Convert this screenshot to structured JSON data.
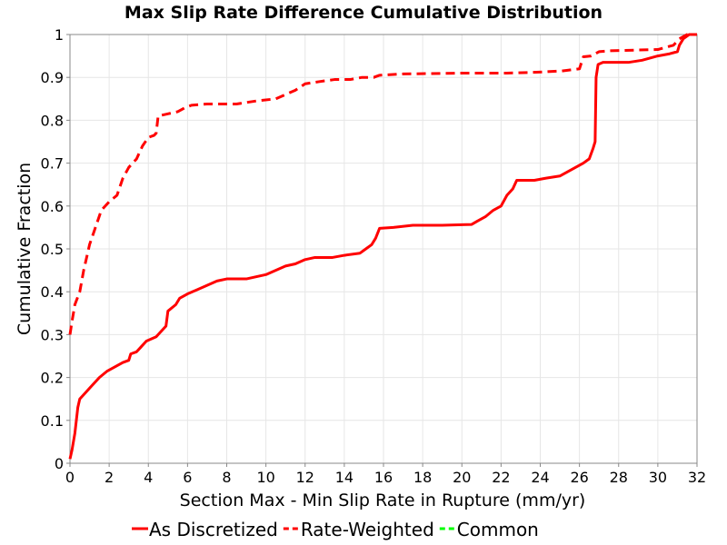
{
  "chart_data": {
    "type": "line",
    "title": "Max Slip Rate Difference Cumulative Distribution",
    "xlabel": "Section Max - Min Slip Rate in Rupture (mm/yr)",
    "ylabel": "Cumulative Fraction",
    "xlim": [
      0,
      32
    ],
    "ylim": [
      0,
      1
    ],
    "x_ticks": [
      0,
      2,
      4,
      6,
      8,
      10,
      12,
      14,
      16,
      18,
      20,
      22,
      24,
      26,
      28,
      30,
      32
    ],
    "y_ticks": [
      0,
      0.1,
      0.2,
      0.3,
      0.4,
      0.5,
      0.6,
      0.7,
      0.8,
      0.9,
      1
    ],
    "y_tick_labels": [
      "0",
      "0.1",
      "0.2",
      "0.3",
      "0.4",
      "0.5",
      "0.6",
      "0.7",
      "0.8",
      "0.9",
      "1"
    ],
    "grid": true,
    "legend_position": "bottom",
    "series": [
      {
        "name": "As Discretized",
        "color": "#ff0000",
        "style": "solid",
        "points": [
          [
            0,
            0.01
          ],
          [
            0.1,
            0.03
          ],
          [
            0.25,
            0.07
          ],
          [
            0.4,
            0.13
          ],
          [
            0.5,
            0.15
          ],
          [
            0.8,
            0.165
          ],
          [
            1.1,
            0.18
          ],
          [
            1.5,
            0.2
          ],
          [
            1.9,
            0.215
          ],
          [
            2.3,
            0.225
          ],
          [
            2.7,
            0.235
          ],
          [
            3.0,
            0.24
          ],
          [
            3.1,
            0.255
          ],
          [
            3.4,
            0.26
          ],
          [
            3.6,
            0.27
          ],
          [
            3.9,
            0.285
          ],
          [
            4.4,
            0.295
          ],
          [
            4.6,
            0.305
          ],
          [
            4.9,
            0.32
          ],
          [
            5.0,
            0.355
          ],
          [
            5.4,
            0.37
          ],
          [
            5.6,
            0.385
          ],
          [
            6.0,
            0.395
          ],
          [
            6.5,
            0.405
          ],
          [
            7.0,
            0.415
          ],
          [
            7.5,
            0.425
          ],
          [
            8.0,
            0.43
          ],
          [
            9.0,
            0.43
          ],
          [
            9.5,
            0.435
          ],
          [
            10.0,
            0.44
          ],
          [
            10.5,
            0.45
          ],
          [
            11.0,
            0.46
          ],
          [
            11.5,
            0.465
          ],
          [
            12.0,
            0.475
          ],
          [
            12.5,
            0.48
          ],
          [
            13.4,
            0.48
          ],
          [
            14.0,
            0.485
          ],
          [
            14.8,
            0.49
          ],
          [
            15.1,
            0.5
          ],
          [
            15.4,
            0.51
          ],
          [
            15.6,
            0.525
          ],
          [
            15.8,
            0.548
          ],
          [
            16.5,
            0.55
          ],
          [
            17.5,
            0.555
          ],
          [
            19.0,
            0.555
          ],
          [
            20.5,
            0.557
          ],
          [
            20.8,
            0.565
          ],
          [
            21.2,
            0.575
          ],
          [
            21.6,
            0.59
          ],
          [
            22.0,
            0.6
          ],
          [
            22.3,
            0.625
          ],
          [
            22.6,
            0.64
          ],
          [
            22.8,
            0.66
          ],
          [
            23.7,
            0.66
          ],
          [
            24.3,
            0.665
          ],
          [
            25.0,
            0.67
          ],
          [
            25.4,
            0.68
          ],
          [
            25.8,
            0.69
          ],
          [
            26.2,
            0.7
          ],
          [
            26.5,
            0.71
          ],
          [
            26.7,
            0.735
          ],
          [
            26.8,
            0.75
          ],
          [
            26.85,
            0.9
          ],
          [
            26.95,
            0.93
          ],
          [
            27.2,
            0.935
          ],
          [
            28.5,
            0.935
          ],
          [
            29.2,
            0.94
          ],
          [
            30.0,
            0.95
          ],
          [
            30.6,
            0.955
          ],
          [
            31.0,
            0.96
          ],
          [
            31.1,
            0.975
          ],
          [
            31.3,
            0.99
          ],
          [
            31.6,
            1.0
          ],
          [
            32,
            1.0
          ]
        ]
      },
      {
        "name": "Rate-Weighted",
        "color": "#ff0000",
        "style": "dashed",
        "points": [
          [
            0,
            0.3
          ],
          [
            0.1,
            0.33
          ],
          [
            0.25,
            0.37
          ],
          [
            0.5,
            0.4
          ],
          [
            0.7,
            0.45
          ],
          [
            1.0,
            0.51
          ],
          [
            1.3,
            0.55
          ],
          [
            1.6,
            0.59
          ],
          [
            2.0,
            0.61
          ],
          [
            2.4,
            0.625
          ],
          [
            2.7,
            0.665
          ],
          [
            3.0,
            0.69
          ],
          [
            3.4,
            0.71
          ],
          [
            3.7,
            0.74
          ],
          [
            4.0,
            0.76
          ],
          [
            4.3,
            0.765
          ],
          [
            4.4,
            0.77
          ],
          [
            4.5,
            0.81
          ],
          [
            5.0,
            0.815
          ],
          [
            5.5,
            0.82
          ],
          [
            5.9,
            0.83
          ],
          [
            6.2,
            0.835
          ],
          [
            7.0,
            0.838
          ],
          [
            8.5,
            0.838
          ],
          [
            9.5,
            0.845
          ],
          [
            10.5,
            0.85
          ],
          [
            11.0,
            0.86
          ],
          [
            11.5,
            0.87
          ],
          [
            12.0,
            0.885
          ],
          [
            12.7,
            0.89
          ],
          [
            13.5,
            0.895
          ],
          [
            14.3,
            0.895
          ],
          [
            14.9,
            0.9
          ],
          [
            15.5,
            0.9
          ],
          [
            15.8,
            0.905
          ],
          [
            17.0,
            0.908
          ],
          [
            20.0,
            0.91
          ],
          [
            22.3,
            0.91
          ],
          [
            23.8,
            0.912
          ],
          [
            25.1,
            0.915
          ],
          [
            26.0,
            0.92
          ],
          [
            26.2,
            0.948
          ],
          [
            26.6,
            0.95
          ],
          [
            27.0,
            0.96
          ],
          [
            27.5,
            0.962
          ],
          [
            30.0,
            0.965
          ],
          [
            30.8,
            0.975
          ],
          [
            31.1,
            0.99
          ],
          [
            31.5,
            1.0
          ],
          [
            32,
            1.0
          ]
        ]
      },
      {
        "name": "Common",
        "color": "#00ff00",
        "style": "dashed",
        "points": []
      }
    ]
  }
}
